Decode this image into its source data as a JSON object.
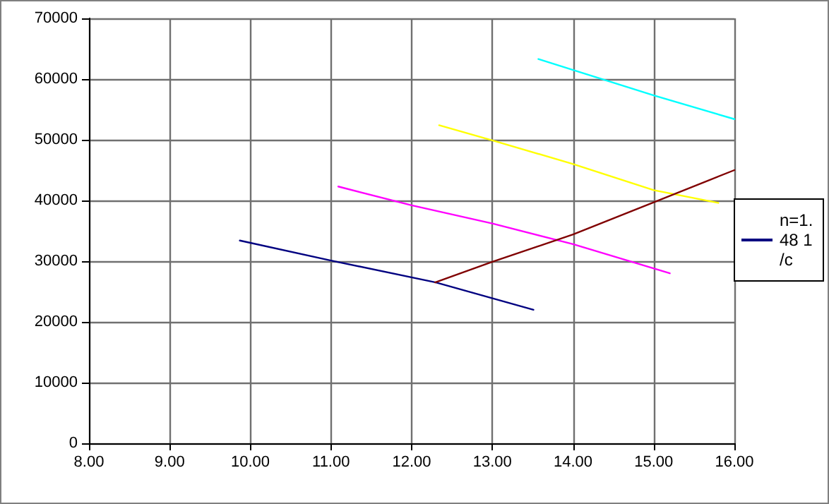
{
  "chart_data": {
    "type": "line",
    "xlim": [
      8,
      16
    ],
    "xticks": [
      {
        "value": 8,
        "label": "8.00"
      },
      {
        "value": 9,
        "label": "9.00"
      },
      {
        "value": 10,
        "label": "10.00"
      },
      {
        "value": 11,
        "label": "11.00"
      },
      {
        "value": 12,
        "label": "12.00"
      },
      {
        "value": 13,
        "label": "13.00"
      },
      {
        "value": 14,
        "label": "14.00"
      },
      {
        "value": 15,
        "label": "15.00"
      },
      {
        "value": 16,
        "label": "16.00"
      }
    ],
    "ylim": [
      0,
      70000
    ],
    "yticks": [
      0,
      10000,
      20000,
      30000,
      40000,
      50000,
      60000,
      70000
    ],
    "grid": true,
    "legend": "right",
    "marker": "none",
    "line_style": "solid",
    "series": [
      {
        "name": "n=1.48 1/c",
        "color": "#000080",
        "x": [
          9.87,
          11,
          12.3,
          13.51
        ],
        "values": [
          33400,
          30100,
          26500,
          22000
        ]
      },
      {
        "color": "#ff00ff",
        "x": [
          11.09,
          12,
          13,
          14,
          15.2
        ],
        "values": [
          42300,
          39200,
          36200,
          32800,
          28000
        ]
      },
      {
        "color": "#ffff00",
        "x": [
          12.34,
          13,
          14,
          15,
          15.8
        ],
        "values": [
          52400,
          49900,
          46000,
          41700,
          39600
        ]
      },
      {
        "color": "#00ffff",
        "x": [
          13.57,
          14,
          15,
          16
        ],
        "values": [
          63300,
          61500,
          57300,
          53400
        ]
      },
      {
        "color": "#800000",
        "x": [
          12.29,
          13,
          14,
          15,
          16
        ],
        "values": [
          26500,
          29900,
          34400,
          39700,
          45000
        ]
      }
    ]
  }
}
